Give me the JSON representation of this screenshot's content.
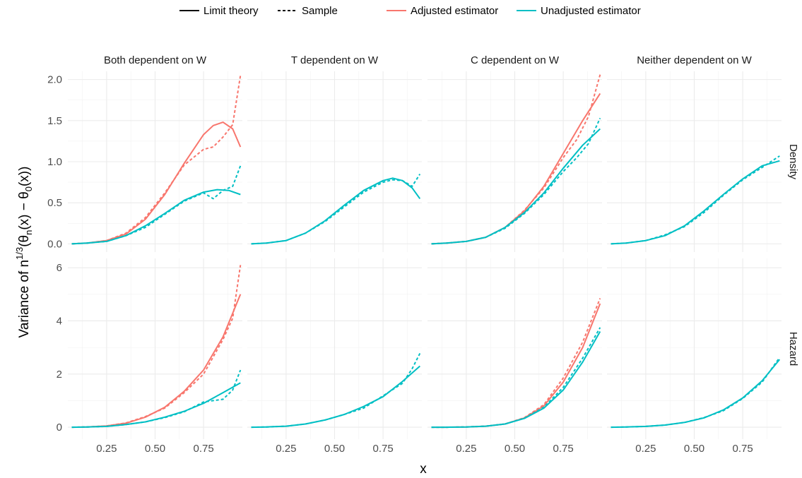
{
  "chart_data": {
    "type": "line",
    "xlabel": "x",
    "ylabel": {
      "prefix": "Variance of n",
      "sup": "1/3",
      "p1": "(θ",
      "sub1": "n",
      "p2": "(x) − θ",
      "sub2": "0",
      "p3": "(x))"
    },
    "legend": {
      "linetype_items": [
        {
          "label": "Limit theory",
          "style": "solid"
        },
        {
          "label": "Sample",
          "style": "dashed"
        }
      ],
      "color_items": [
        {
          "label": "Adjusted estimator",
          "color": "#F8766D"
        },
        {
          "label": "Unadjusted estimator",
          "color": "#00BFC4"
        }
      ],
      "position": "top"
    },
    "column_labels": [
      "Both dependent on W",
      "T dependent on W",
      "C dependent on W",
      "Neither dependent on W"
    ],
    "row_labels": [
      "Density",
      "Hazard"
    ],
    "x_range": [
      0.05,
      0.95
    ],
    "x_ticks": [
      0.25,
      0.5,
      0.75
    ],
    "x_tick_labels": [
      "0.25",
      "0.50",
      "0.75"
    ],
    "rows": [
      {
        "ylim": [
          -0.1,
          2.1
        ],
        "y_ticks": [
          0,
          0.5,
          1,
          1.5,
          2
        ],
        "y_tick_labels": [
          "0.0",
          "0.5",
          "1.0",
          "1.5",
          "2.0"
        ]
      },
      {
        "ylim": [
          -0.45,
          6.35
        ],
        "y_ticks": [
          0,
          2,
          4,
          6
        ],
        "y_tick_labels": [
          "0",
          "2",
          "4",
          "6"
        ]
      }
    ],
    "grid": true,
    "colors": {
      "adjusted": "#F8766D",
      "unadjusted": "#00BFC4"
    },
    "panels": [
      {
        "row": 0,
        "col": 0,
        "adjusted_limit": [
          [
            0.07,
            0.0
          ],
          [
            0.15,
            0.01
          ],
          [
            0.25,
            0.04
          ],
          [
            0.35,
            0.12
          ],
          [
            0.45,
            0.3
          ],
          [
            0.55,
            0.6
          ],
          [
            0.65,
            0.98
          ],
          [
            0.75,
            1.33
          ],
          [
            0.8,
            1.44
          ],
          [
            0.85,
            1.48
          ],
          [
            0.9,
            1.4
          ],
          [
            0.94,
            1.18
          ]
        ],
        "adjusted_sample": [
          [
            0.07,
            0.0
          ],
          [
            0.15,
            0.01
          ],
          [
            0.25,
            0.04
          ],
          [
            0.35,
            0.13
          ],
          [
            0.45,
            0.32
          ],
          [
            0.55,
            0.62
          ],
          [
            0.65,
            0.96
          ],
          [
            0.75,
            1.15
          ],
          [
            0.8,
            1.18
          ],
          [
            0.85,
            1.3
          ],
          [
            0.9,
            1.45
          ],
          [
            0.94,
            2.05
          ]
        ],
        "unadjusted_limit": [
          [
            0.07,
            0.0
          ],
          [
            0.15,
            0.01
          ],
          [
            0.25,
            0.03
          ],
          [
            0.35,
            0.1
          ],
          [
            0.45,
            0.22
          ],
          [
            0.55,
            0.37
          ],
          [
            0.65,
            0.53
          ],
          [
            0.75,
            0.63
          ],
          [
            0.82,
            0.66
          ],
          [
            0.88,
            0.65
          ],
          [
            0.94,
            0.6
          ]
        ],
        "unadjusted_sample": [
          [
            0.07,
            0.0
          ],
          [
            0.15,
            0.01
          ],
          [
            0.25,
            0.03
          ],
          [
            0.35,
            0.1
          ],
          [
            0.45,
            0.2
          ],
          [
            0.55,
            0.36
          ],
          [
            0.65,
            0.52
          ],
          [
            0.75,
            0.62
          ],
          [
            0.8,
            0.55
          ],
          [
            0.85,
            0.65
          ],
          [
            0.9,
            0.7
          ],
          [
            0.94,
            0.95
          ]
        ]
      },
      {
        "row": 0,
        "col": 1,
        "unadjusted_limit": [
          [
            0.07,
            0.0
          ],
          [
            0.15,
            0.01
          ],
          [
            0.25,
            0.04
          ],
          [
            0.35,
            0.13
          ],
          [
            0.45,
            0.28
          ],
          [
            0.55,
            0.47
          ],
          [
            0.65,
            0.65
          ],
          [
            0.75,
            0.77
          ],
          [
            0.8,
            0.8
          ],
          [
            0.85,
            0.77
          ],
          [
            0.9,
            0.68
          ],
          [
            0.94,
            0.55
          ]
        ],
        "unadjusted_sample": [
          [
            0.07,
            0.0
          ],
          [
            0.15,
            0.01
          ],
          [
            0.25,
            0.04
          ],
          [
            0.35,
            0.13
          ],
          [
            0.45,
            0.27
          ],
          [
            0.55,
            0.45
          ],
          [
            0.65,
            0.63
          ],
          [
            0.75,
            0.75
          ],
          [
            0.8,
            0.78
          ],
          [
            0.85,
            0.77
          ],
          [
            0.9,
            0.7
          ],
          [
            0.94,
            0.85
          ]
        ]
      },
      {
        "row": 0,
        "col": 2,
        "adjusted_limit": [
          [
            0.07,
            0.0
          ],
          [
            0.15,
            0.01
          ],
          [
            0.25,
            0.03
          ],
          [
            0.35,
            0.08
          ],
          [
            0.45,
            0.2
          ],
          [
            0.55,
            0.4
          ],
          [
            0.65,
            0.7
          ],
          [
            0.75,
            1.1
          ],
          [
            0.85,
            1.5
          ],
          [
            0.94,
            1.83
          ]
        ],
        "adjusted_sample": [
          [
            0.07,
            0.0
          ],
          [
            0.15,
            0.01
          ],
          [
            0.25,
            0.03
          ],
          [
            0.35,
            0.08
          ],
          [
            0.45,
            0.2
          ],
          [
            0.55,
            0.41
          ],
          [
            0.65,
            0.68
          ],
          [
            0.75,
            1.05
          ],
          [
            0.82,
            1.27
          ],
          [
            0.88,
            1.55
          ],
          [
            0.94,
            2.06
          ]
        ],
        "unadjusted_limit": [
          [
            0.07,
            0.0
          ],
          [
            0.15,
            0.01
          ],
          [
            0.25,
            0.03
          ],
          [
            0.35,
            0.08
          ],
          [
            0.45,
            0.2
          ],
          [
            0.55,
            0.38
          ],
          [
            0.65,
            0.62
          ],
          [
            0.75,
            0.92
          ],
          [
            0.85,
            1.2
          ],
          [
            0.94,
            1.4
          ]
        ],
        "unadjusted_sample": [
          [
            0.07,
            0.0
          ],
          [
            0.15,
            0.01
          ],
          [
            0.25,
            0.03
          ],
          [
            0.35,
            0.08
          ],
          [
            0.45,
            0.19
          ],
          [
            0.55,
            0.37
          ],
          [
            0.65,
            0.6
          ],
          [
            0.75,
            0.88
          ],
          [
            0.82,
            1.05
          ],
          [
            0.88,
            1.22
          ],
          [
            0.94,
            1.53
          ]
        ]
      },
      {
        "row": 0,
        "col": 3,
        "unadjusted_limit": [
          [
            0.07,
            0.0
          ],
          [
            0.15,
            0.01
          ],
          [
            0.25,
            0.04
          ],
          [
            0.35,
            0.1
          ],
          [
            0.45,
            0.22
          ],
          [
            0.55,
            0.4
          ],
          [
            0.65,
            0.6
          ],
          [
            0.75,
            0.79
          ],
          [
            0.85,
            0.95
          ],
          [
            0.94,
            1.01
          ]
        ],
        "unadjusted_sample": [
          [
            0.07,
            0.0
          ],
          [
            0.15,
            0.01
          ],
          [
            0.25,
            0.04
          ],
          [
            0.35,
            0.11
          ],
          [
            0.45,
            0.21
          ],
          [
            0.55,
            0.38
          ],
          [
            0.65,
            0.59
          ],
          [
            0.75,
            0.78
          ],
          [
            0.85,
            0.93
          ],
          [
            0.94,
            1.07
          ]
        ]
      },
      {
        "row": 1,
        "col": 0,
        "adjusted_limit": [
          [
            0.07,
            0.0
          ],
          [
            0.15,
            0.01
          ],
          [
            0.25,
            0.05
          ],
          [
            0.35,
            0.15
          ],
          [
            0.45,
            0.38
          ],
          [
            0.55,
            0.75
          ],
          [
            0.65,
            1.35
          ],
          [
            0.75,
            2.15
          ],
          [
            0.85,
            3.4
          ],
          [
            0.94,
            5.0
          ]
        ],
        "adjusted_sample": [
          [
            0.07,
            0.0
          ],
          [
            0.15,
            0.01
          ],
          [
            0.25,
            0.05
          ],
          [
            0.35,
            0.16
          ],
          [
            0.45,
            0.4
          ],
          [
            0.55,
            0.72
          ],
          [
            0.65,
            1.3
          ],
          [
            0.75,
            2.0
          ],
          [
            0.85,
            3.3
          ],
          [
            0.9,
            4.1
          ],
          [
            0.94,
            6.1
          ]
        ],
        "unadjusted_limit": [
          [
            0.07,
            0.0
          ],
          [
            0.15,
            0.01
          ],
          [
            0.25,
            0.03
          ],
          [
            0.35,
            0.1
          ],
          [
            0.45,
            0.2
          ],
          [
            0.55,
            0.38
          ],
          [
            0.65,
            0.6
          ],
          [
            0.75,
            0.9
          ],
          [
            0.85,
            1.3
          ],
          [
            0.94,
            1.67
          ]
        ],
        "unadjusted_sample": [
          [
            0.07,
            0.0
          ],
          [
            0.15,
            0.01
          ],
          [
            0.25,
            0.03
          ],
          [
            0.35,
            0.1
          ],
          [
            0.45,
            0.2
          ],
          [
            0.55,
            0.36
          ],
          [
            0.65,
            0.58
          ],
          [
            0.75,
            0.95
          ],
          [
            0.85,
            1.05
          ],
          [
            0.9,
            1.4
          ],
          [
            0.94,
            2.15
          ]
        ]
      },
      {
        "row": 1,
        "col": 1,
        "unadjusted_limit": [
          [
            0.07,
            0.0
          ],
          [
            0.15,
            0.01
          ],
          [
            0.25,
            0.04
          ],
          [
            0.35,
            0.12
          ],
          [
            0.45,
            0.27
          ],
          [
            0.55,
            0.48
          ],
          [
            0.65,
            0.78
          ],
          [
            0.75,
            1.15
          ],
          [
            0.85,
            1.72
          ],
          [
            0.94,
            2.3
          ]
        ],
        "unadjusted_sample": [
          [
            0.07,
            0.0
          ],
          [
            0.15,
            0.01
          ],
          [
            0.25,
            0.04
          ],
          [
            0.35,
            0.12
          ],
          [
            0.45,
            0.27
          ],
          [
            0.55,
            0.48
          ],
          [
            0.65,
            0.72
          ],
          [
            0.75,
            1.18
          ],
          [
            0.85,
            1.65
          ],
          [
            0.9,
            2.2
          ],
          [
            0.94,
            2.78
          ]
        ]
      },
      {
        "row": 1,
        "col": 2,
        "adjusted_limit": [
          [
            0.07,
            0.0
          ],
          [
            0.15,
            0.0
          ],
          [
            0.25,
            0.01
          ],
          [
            0.35,
            0.04
          ],
          [
            0.45,
            0.12
          ],
          [
            0.55,
            0.35
          ],
          [
            0.65,
            0.8
          ],
          [
            0.75,
            1.7
          ],
          [
            0.85,
            3.0
          ],
          [
            0.94,
            4.65
          ]
        ],
        "adjusted_sample": [
          [
            0.07,
            0.0
          ],
          [
            0.15,
            0.0
          ],
          [
            0.25,
            0.01
          ],
          [
            0.35,
            0.04
          ],
          [
            0.45,
            0.12
          ],
          [
            0.55,
            0.36
          ],
          [
            0.65,
            0.85
          ],
          [
            0.75,
            1.85
          ],
          [
            0.85,
            3.2
          ],
          [
            0.94,
            4.85
          ]
        ],
        "unadjusted_limit": [
          [
            0.07,
            0.0
          ],
          [
            0.15,
            0.0
          ],
          [
            0.25,
            0.01
          ],
          [
            0.35,
            0.04
          ],
          [
            0.45,
            0.12
          ],
          [
            0.55,
            0.33
          ],
          [
            0.65,
            0.72
          ],
          [
            0.75,
            1.4
          ],
          [
            0.85,
            2.45
          ],
          [
            0.94,
            3.6
          ]
        ],
        "unadjusted_sample": [
          [
            0.07,
            0.0
          ],
          [
            0.15,
            0.0
          ],
          [
            0.25,
            0.01
          ],
          [
            0.35,
            0.04
          ],
          [
            0.45,
            0.12
          ],
          [
            0.55,
            0.34
          ],
          [
            0.65,
            0.75
          ],
          [
            0.75,
            1.5
          ],
          [
            0.85,
            2.6
          ],
          [
            0.94,
            3.75
          ]
        ]
      },
      {
        "row": 1,
        "col": 3,
        "unadjusted_limit": [
          [
            0.07,
            0.0
          ],
          [
            0.15,
            0.01
          ],
          [
            0.25,
            0.03
          ],
          [
            0.35,
            0.08
          ],
          [
            0.45,
            0.18
          ],
          [
            0.55,
            0.35
          ],
          [
            0.65,
            0.65
          ],
          [
            0.75,
            1.1
          ],
          [
            0.85,
            1.75
          ],
          [
            0.94,
            2.55
          ]
        ],
        "unadjusted_sample": [
          [
            0.07,
            0.0
          ],
          [
            0.15,
            0.01
          ],
          [
            0.25,
            0.03
          ],
          [
            0.35,
            0.08
          ],
          [
            0.45,
            0.18
          ],
          [
            0.55,
            0.36
          ],
          [
            0.65,
            0.62
          ],
          [
            0.75,
            1.08
          ],
          [
            0.85,
            1.7
          ],
          [
            0.94,
            2.62
          ]
        ]
      }
    ]
  }
}
